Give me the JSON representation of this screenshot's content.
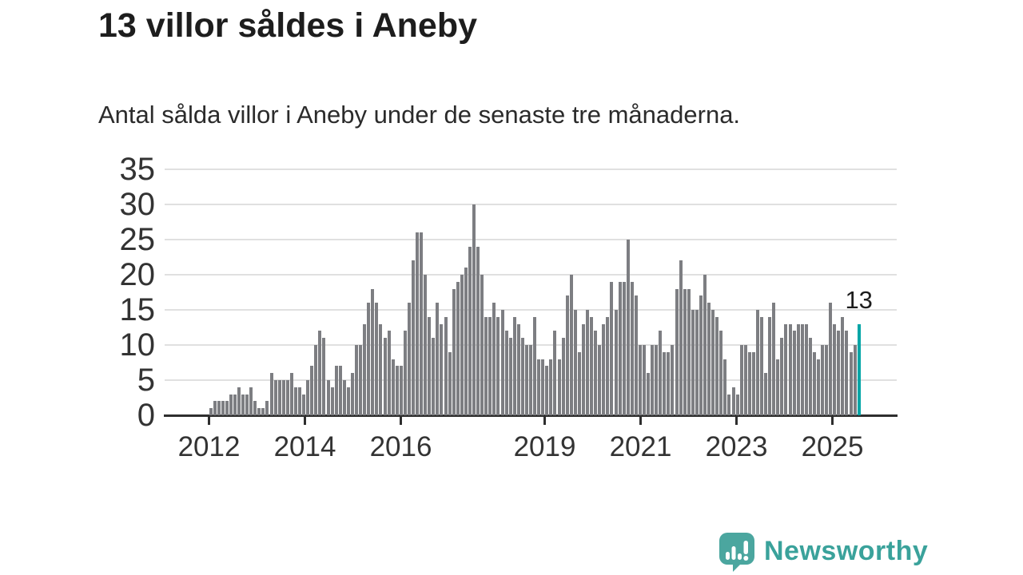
{
  "header": {
    "title": "13 villor såldes i Aneby",
    "subtitle": "Antal sålda villor i Aneby under de senaste tre månaderna."
  },
  "annotation": {
    "last_value_label": "13"
  },
  "footer": {
    "brand": "Newsworthy",
    "logo_icon": "speech-bubble-bar-chart-icon"
  },
  "colors": {
    "bar": "#7d7e82",
    "highlight": "#00a5a6",
    "grid": "#e0e0e0",
    "axis": "#2e2e2e",
    "text": "#1d1d1d",
    "brand": "#3aa29b"
  },
  "chart_data": {
    "type": "bar",
    "title": "13 villor såldes i Aneby",
    "subtitle": "Antal sålda villor i Aneby under de senaste tre månaderna.",
    "xlabel": "",
    "ylabel": "",
    "x_start": "2012-01",
    "frequency": "monthly",
    "ylim": [
      0,
      35
    ],
    "grid": true,
    "y_ticks": [
      0,
      5,
      10,
      15,
      20,
      25,
      30,
      35
    ],
    "x_tick_labels": [
      "2012",
      "2014",
      "2016",
      "2019",
      "2021",
      "2023",
      "2025"
    ],
    "highlight_last": true,
    "last_value": 13,
    "last_value_label": "13",
    "values": [
      1,
      2,
      2,
      2,
      2,
      3,
      3,
      4,
      3,
      3,
      4,
      2,
      1,
      1,
      2,
      6,
      5,
      5,
      5,
      5,
      6,
      4,
      4,
      3,
      5,
      7,
      10,
      12,
      11,
      5,
      4,
      7,
      7,
      5,
      4,
      6,
      10,
      10,
      13,
      16,
      18,
      16,
      13,
      11,
      12,
      8,
      7,
      7,
      12,
      16,
      22,
      26,
      26,
      20,
      14,
      11,
      16,
      13,
      14,
      9,
      18,
      19,
      20,
      21,
      24,
      30,
      24,
      20,
      14,
      14,
      16,
      14,
      15,
      12,
      11,
      14,
      13,
      11,
      10,
      10,
      14,
      8,
      8,
      7,
      8,
      12,
      8,
      11,
      17,
      20,
      15,
      9,
      13,
      15,
      14,
      12,
      10,
      13,
      14,
      19,
      15,
      19,
      19,
      25,
      19,
      17,
      10,
      10,
      6,
      10,
      10,
      12,
      9,
      9,
      10,
      18,
      22,
      18,
      18,
      15,
      15,
      17,
      20,
      16,
      15,
      14,
      12,
      8,
      3,
      4,
      3,
      10,
      10,
      9,
      9,
      15,
      14,
      6,
      14,
      16,
      8,
      11,
      13,
      13,
      12,
      13,
      13,
      13,
      11,
      9,
      8,
      10,
      10,
      16,
      13,
      12,
      14,
      12,
      9,
      10,
      13
    ]
  }
}
